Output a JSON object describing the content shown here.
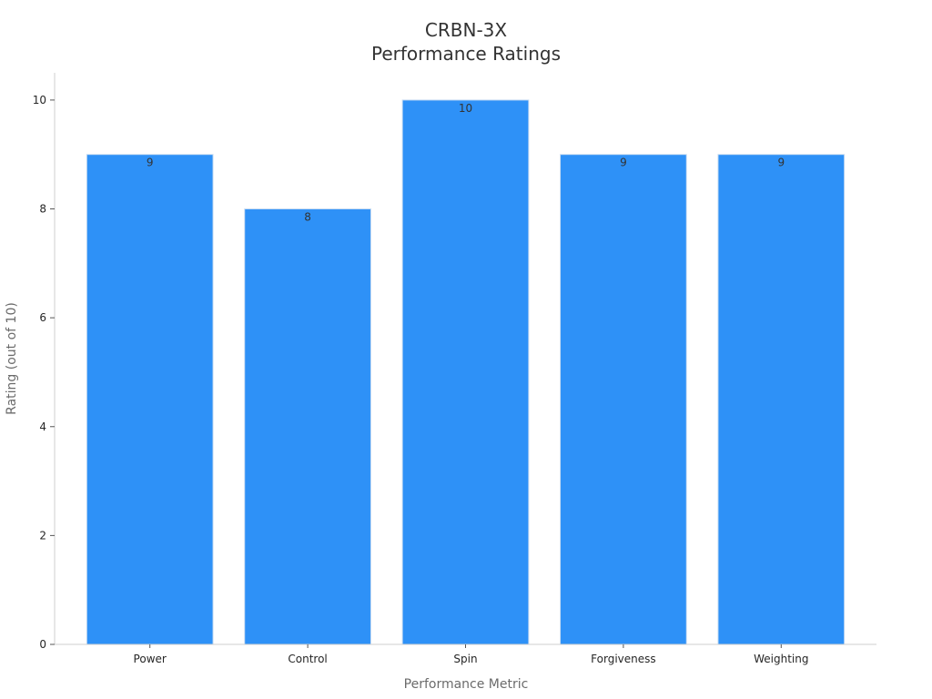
{
  "chart_data": {
    "type": "bar",
    "title_lines": [
      "CRBN-3X",
      "Performance Ratings"
    ],
    "xlabel": "Performance Metric",
    "ylabel": "Rating (out of 10)",
    "categories": [
      "Power",
      "Control",
      "Spin",
      "Forgiveness",
      "Weighting"
    ],
    "values": [
      9,
      8,
      10,
      9,
      9
    ],
    "ylim": [
      0,
      10.5
    ],
    "yticks": [
      0,
      2,
      4,
      6,
      8,
      10
    ],
    "grid": false,
    "bar_color": "#2e91f7",
    "bar_edge_color": "#c8dcf2"
  }
}
